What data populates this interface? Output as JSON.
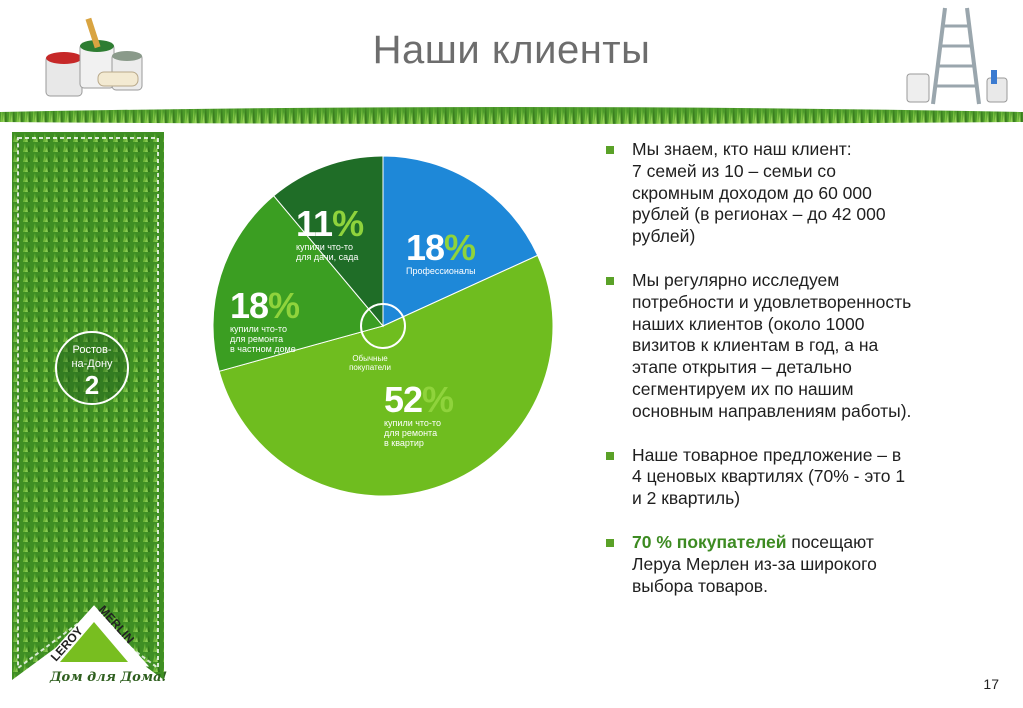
{
  "slide": {
    "title": "Наши клиенты",
    "page_number": "17"
  },
  "city_badge": {
    "line1": "Ростов-",
    "line2": "на-Дону",
    "number": "2"
  },
  "logo": {
    "text_left": "LEROY",
    "text_right": "MERLIN",
    "slogan": "Дом для Дома!"
  },
  "chart_data": {
    "type": "pie",
    "center_label": [
      "Обычные",
      "покупатели"
    ],
    "slices": [
      {
        "value": 18,
        "pct_label": "18",
        "sign": "%",
        "desc": [
          "Профессионалы"
        ],
        "color": "#1e88d8"
      },
      {
        "value": 52,
        "pct_label": "52",
        "sign": "%",
        "desc": [
          "купили что-то",
          "для ремонта",
          "в квартир"
        ],
        "color": "#6fbd1f"
      },
      {
        "value": 18,
        "pct_label": "18",
        "sign": "%",
        "desc": [
          "купили что-то",
          "для ремонта",
          "в частном доме"
        ],
        "color": "#3b9e22"
      },
      {
        "value": 11,
        "pct_label": "11",
        "sign": "%",
        "desc": [
          "купили что-то",
          "для дачи, сада"
        ],
        "color": "#1f6d27"
      }
    ]
  },
  "bullets": [
    {
      "lines": [
        "Мы знаем, кто наш клиент:",
        "7 семей из 10 – семьи со",
        "скромным доходом до 60 000",
        "рублей (в регионах – до 42 000",
        "рублей)"
      ]
    },
    {
      "lines": [
        "Мы регулярно исследуем",
        "потребности и удовлетворенность",
        "наших клиентов (около 1000",
        "визитов к клиентам в год, а на",
        "этапе открытия – детально",
        "сегментируем их по нашим",
        "основным направлениям работы)."
      ]
    },
    {
      "lines": [
        "Наше товарное предложение – в",
        "4 ценовых квартилях (70% - это 1",
        "и 2 квартиль)"
      ]
    },
    {
      "highlight": "70 % покупателей",
      "lines": [
        " посещают",
        "Леруа Мерлен из-за широкого",
        "выбора товаров."
      ]
    }
  ],
  "colors": {
    "grass": "#3f8f24",
    "accent_green": "#5aa128",
    "highlight_text": "#3d8b22",
    "title_gray": "#6d6d6d"
  }
}
